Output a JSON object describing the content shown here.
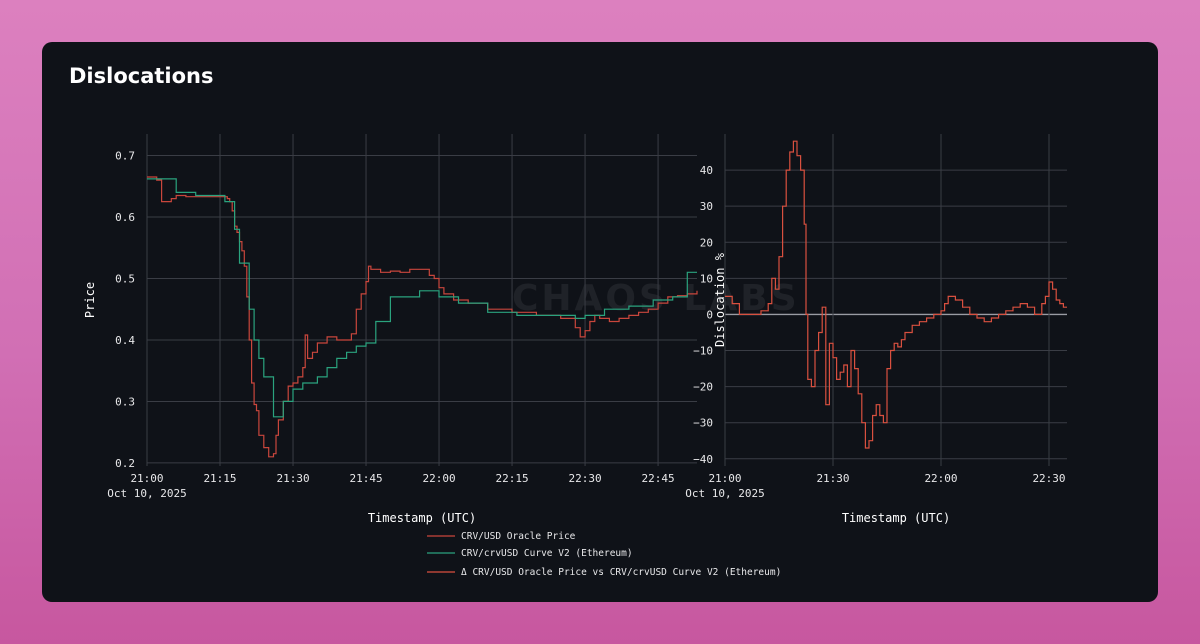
{
  "page": {
    "title": "Dislocations"
  },
  "watermark": "CHAOS LABS",
  "colors": {
    "oracle": "#c9463c",
    "curve": "#2aa37e",
    "delta": "#d9503f",
    "grid": "#3a3d45",
    "zero_line": "#9a9ca3"
  },
  "chart_data": [
    {
      "type": "line",
      "id": "price",
      "xlabel": "Timestamp (UTC)",
      "ylabel": "Price",
      "xlim": [
        0,
        113
      ],
      "ylim": [
        0.195,
        0.735
      ],
      "y_ticks": [
        0.2,
        0.3,
        0.4,
        0.5,
        0.6,
        0.7
      ],
      "y_tick_labels": [
        "0.2",
        "0.3",
        "0.4",
        "0.5",
        "0.6",
        "0.7"
      ],
      "x_ticks": [
        0,
        15,
        30,
        45,
        60,
        75,
        90,
        105
      ],
      "x_tick_labels": [
        "21:00",
        "21:15",
        "21:30",
        "21:45",
        "22:00",
        "22:15",
        "22:30",
        "22:45"
      ],
      "x_tick_sublabels": [
        "Oct 10, 2025",
        "",
        "",
        "",
        "",
        "",
        "",
        ""
      ],
      "grid": true,
      "series": [
        {
          "name": "CRV/USD Oracle Price",
          "color_key": "oracle",
          "x": [
            0,
            2,
            3,
            5,
            6,
            8,
            10,
            12,
            14,
            16,
            16.5,
            17,
            17.5,
            18,
            18.5,
            19,
            19.5,
            20,
            20.5,
            21,
            21.5,
            22,
            22.5,
            23,
            24,
            25,
            25.5,
            26,
            26.5,
            27,
            28,
            29,
            30,
            31,
            32,
            32.5,
            33,
            34,
            35,
            37,
            39,
            41,
            42,
            43,
            44,
            45,
            45.5,
            46,
            48,
            50,
            52,
            54,
            56,
            58,
            59,
            60,
            61,
            63,
            66,
            70,
            75,
            80,
            85,
            88,
            89,
            90,
            91,
            92,
            93,
            95,
            97,
            99,
            101,
            103,
            105,
            107,
            109,
            111,
            113
          ],
          "values": [
            0.665,
            0.66,
            0.625,
            0.63,
            0.635,
            0.633,
            0.633,
            0.633,
            0.633,
            0.633,
            0.63,
            0.625,
            0.61,
            0.585,
            0.575,
            0.56,
            0.545,
            0.52,
            0.47,
            0.4,
            0.33,
            0.295,
            0.285,
            0.245,
            0.225,
            0.21,
            0.21,
            0.215,
            0.245,
            0.27,
            0.3,
            0.325,
            0.33,
            0.34,
            0.355,
            0.408,
            0.37,
            0.38,
            0.395,
            0.405,
            0.4,
            0.4,
            0.41,
            0.45,
            0.475,
            0.495,
            0.52,
            0.515,
            0.51,
            0.512,
            0.51,
            0.515,
            0.515,
            0.505,
            0.5,
            0.485,
            0.475,
            0.465,
            0.46,
            0.45,
            0.445,
            0.44,
            0.435,
            0.42,
            0.405,
            0.415,
            0.43,
            0.44,
            0.435,
            0.43,
            0.435,
            0.44,
            0.445,
            0.45,
            0.46,
            0.47,
            0.472,
            0.475,
            0.48
          ]
        },
        {
          "name": "CRV/crvUSD Curve V2 (Ethereum)",
          "color_key": "curve",
          "x": [
            0,
            4,
            6,
            10,
            15,
            16,
            18,
            19,
            21,
            22,
            23,
            24,
            26,
            28,
            30,
            32,
            35,
            37,
            39,
            41,
            43,
            45,
            47,
            50,
            53,
            56,
            60,
            64,
            70,
            76,
            82,
            88,
            90,
            94,
            99,
            104,
            108,
            111,
            113
          ],
          "values": [
            0.662,
            0.662,
            0.64,
            0.635,
            0.635,
            0.625,
            0.58,
            0.525,
            0.45,
            0.4,
            0.37,
            0.34,
            0.275,
            0.3,
            0.32,
            0.33,
            0.34,
            0.355,
            0.37,
            0.38,
            0.39,
            0.395,
            0.43,
            0.47,
            0.47,
            0.48,
            0.47,
            0.46,
            0.445,
            0.44,
            0.44,
            0.435,
            0.44,
            0.45,
            0.455,
            0.465,
            0.47,
            0.51,
            0.51
          ]
        }
      ]
    },
    {
      "type": "line",
      "id": "dislocation",
      "xlabel": "Timestamp (UTC)",
      "ylabel": "Dislocation %",
      "xlim": [
        0,
        95
      ],
      "ylim": [
        -42,
        50
      ],
      "y_ticks": [
        -40,
        -30,
        -20,
        -10,
        0,
        10,
        20,
        30,
        40
      ],
      "y_tick_labels": [
        "−40",
        "−30",
        "−20",
        "−10",
        "0",
        "10",
        "20",
        "30",
        "40"
      ],
      "x_ticks": [
        0,
        30,
        60,
        90
      ],
      "x_tick_labels": [
        "21:00",
        "21:30",
        "22:00",
        "22:30"
      ],
      "x_tick_sublabels": [
        "Oct 10, 2025",
        "",
        "",
        ""
      ],
      "grid": true,
      "series": [
        {
          "name": "Δ CRV/USD Oracle Price vs CRV/crvUSD Curve V2 (Ethereum)",
          "color_key": "delta",
          "x": [
            0,
            2,
            4,
            10,
            12,
            13,
            14,
            15,
            16,
            17,
            18,
            19,
            20,
            21,
            22,
            22.5,
            23,
            24,
            25,
            26,
            27,
            28,
            29,
            30,
            31,
            32,
            33,
            34,
            35,
            36,
            37,
            38,
            39,
            40,
            41,
            42,
            43,
            44,
            45,
            46,
            47,
            48,
            49,
            50,
            52,
            54,
            56,
            58,
            60,
            61,
            62,
            64,
            66,
            68,
            70,
            72,
            74,
            76,
            78,
            80,
            82,
            84,
            86,
            88,
            89,
            90,
            91,
            92,
            93,
            94,
            95
          ],
          "values": [
            5,
            3,
            0,
            1,
            3,
            10,
            7,
            16,
            30,
            40,
            45,
            48,
            44,
            40,
            25,
            0,
            -18,
            -20,
            -10,
            -5,
            2,
            -25,
            -8,
            -12,
            -18,
            -16,
            -14,
            -20,
            -10,
            -15,
            -22,
            -30,
            -37,
            -35,
            -28,
            -25,
            -28,
            -30,
            -15,
            -10,
            -8,
            -9,
            -7,
            -5,
            -3,
            -2,
            -1,
            0,
            1,
            3,
            5,
            4,
            2,
            0,
            -1,
            -2,
            -1,
            0,
            1,
            2,
            3,
            2,
            0,
            3,
            5,
            9,
            7,
            4,
            3,
            2,
            2
          ]
        }
      ]
    }
  ]
}
